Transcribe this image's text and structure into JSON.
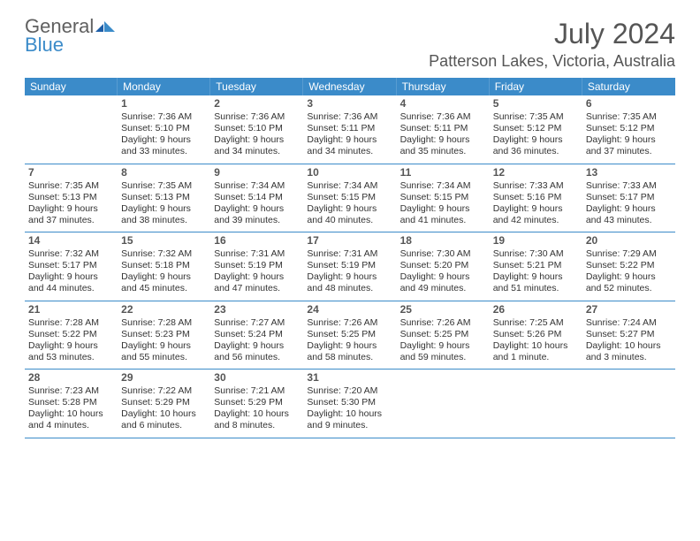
{
  "logo": {
    "text_top": "General",
    "text_bottom": "Blue"
  },
  "month_title": "July 2024",
  "location": "Patterson Lakes, Victoria, Australia",
  "colors": {
    "header_bg": "#3b8bc9",
    "text": "#333333",
    "muted": "#606060"
  },
  "weekdays": [
    "Sunday",
    "Monday",
    "Tuesday",
    "Wednesday",
    "Thursday",
    "Friday",
    "Saturday"
  ],
  "weeks": [
    [
      null,
      {
        "d": "1",
        "sr": "7:36 AM",
        "ss": "5:10 PM",
        "dl1": "Daylight: 9 hours",
        "dl2": "and 33 minutes."
      },
      {
        "d": "2",
        "sr": "7:36 AM",
        "ss": "5:10 PM",
        "dl1": "Daylight: 9 hours",
        "dl2": "and 34 minutes."
      },
      {
        "d": "3",
        "sr": "7:36 AM",
        "ss": "5:11 PM",
        "dl1": "Daylight: 9 hours",
        "dl2": "and 34 minutes."
      },
      {
        "d": "4",
        "sr": "7:36 AM",
        "ss": "5:11 PM",
        "dl1": "Daylight: 9 hours",
        "dl2": "and 35 minutes."
      },
      {
        "d": "5",
        "sr": "7:35 AM",
        "ss": "5:12 PM",
        "dl1": "Daylight: 9 hours",
        "dl2": "and 36 minutes."
      },
      {
        "d": "6",
        "sr": "7:35 AM",
        "ss": "5:12 PM",
        "dl1": "Daylight: 9 hours",
        "dl2": "and 37 minutes."
      }
    ],
    [
      {
        "d": "7",
        "sr": "7:35 AM",
        "ss": "5:13 PM",
        "dl1": "Daylight: 9 hours",
        "dl2": "and 37 minutes."
      },
      {
        "d": "8",
        "sr": "7:35 AM",
        "ss": "5:13 PM",
        "dl1": "Daylight: 9 hours",
        "dl2": "and 38 minutes."
      },
      {
        "d": "9",
        "sr": "7:34 AM",
        "ss": "5:14 PM",
        "dl1": "Daylight: 9 hours",
        "dl2": "and 39 minutes."
      },
      {
        "d": "10",
        "sr": "7:34 AM",
        "ss": "5:15 PM",
        "dl1": "Daylight: 9 hours",
        "dl2": "and 40 minutes."
      },
      {
        "d": "11",
        "sr": "7:34 AM",
        "ss": "5:15 PM",
        "dl1": "Daylight: 9 hours",
        "dl2": "and 41 minutes."
      },
      {
        "d": "12",
        "sr": "7:33 AM",
        "ss": "5:16 PM",
        "dl1": "Daylight: 9 hours",
        "dl2": "and 42 minutes."
      },
      {
        "d": "13",
        "sr": "7:33 AM",
        "ss": "5:17 PM",
        "dl1": "Daylight: 9 hours",
        "dl2": "and 43 minutes."
      }
    ],
    [
      {
        "d": "14",
        "sr": "7:32 AM",
        "ss": "5:17 PM",
        "dl1": "Daylight: 9 hours",
        "dl2": "and 44 minutes."
      },
      {
        "d": "15",
        "sr": "7:32 AM",
        "ss": "5:18 PM",
        "dl1": "Daylight: 9 hours",
        "dl2": "and 45 minutes."
      },
      {
        "d": "16",
        "sr": "7:31 AM",
        "ss": "5:19 PM",
        "dl1": "Daylight: 9 hours",
        "dl2": "and 47 minutes."
      },
      {
        "d": "17",
        "sr": "7:31 AM",
        "ss": "5:19 PM",
        "dl1": "Daylight: 9 hours",
        "dl2": "and 48 minutes."
      },
      {
        "d": "18",
        "sr": "7:30 AM",
        "ss": "5:20 PM",
        "dl1": "Daylight: 9 hours",
        "dl2": "and 49 minutes."
      },
      {
        "d": "19",
        "sr": "7:30 AM",
        "ss": "5:21 PM",
        "dl1": "Daylight: 9 hours",
        "dl2": "and 51 minutes."
      },
      {
        "d": "20",
        "sr": "7:29 AM",
        "ss": "5:22 PM",
        "dl1": "Daylight: 9 hours",
        "dl2": "and 52 minutes."
      }
    ],
    [
      {
        "d": "21",
        "sr": "7:28 AM",
        "ss": "5:22 PM",
        "dl1": "Daylight: 9 hours",
        "dl2": "and 53 minutes."
      },
      {
        "d": "22",
        "sr": "7:28 AM",
        "ss": "5:23 PM",
        "dl1": "Daylight: 9 hours",
        "dl2": "and 55 minutes."
      },
      {
        "d": "23",
        "sr": "7:27 AM",
        "ss": "5:24 PM",
        "dl1": "Daylight: 9 hours",
        "dl2": "and 56 minutes."
      },
      {
        "d": "24",
        "sr": "7:26 AM",
        "ss": "5:25 PM",
        "dl1": "Daylight: 9 hours",
        "dl2": "and 58 minutes."
      },
      {
        "d": "25",
        "sr": "7:26 AM",
        "ss": "5:25 PM",
        "dl1": "Daylight: 9 hours",
        "dl2": "and 59 minutes."
      },
      {
        "d": "26",
        "sr": "7:25 AM",
        "ss": "5:26 PM",
        "dl1": "Daylight: 10 hours",
        "dl2": "and 1 minute."
      },
      {
        "d": "27",
        "sr": "7:24 AM",
        "ss": "5:27 PM",
        "dl1": "Daylight: 10 hours",
        "dl2": "and 3 minutes."
      }
    ],
    [
      {
        "d": "28",
        "sr": "7:23 AM",
        "ss": "5:28 PM",
        "dl1": "Daylight: 10 hours",
        "dl2": "and 4 minutes."
      },
      {
        "d": "29",
        "sr": "7:22 AM",
        "ss": "5:29 PM",
        "dl1": "Daylight: 10 hours",
        "dl2": "and 6 minutes."
      },
      {
        "d": "30",
        "sr": "7:21 AM",
        "ss": "5:29 PM",
        "dl1": "Daylight: 10 hours",
        "dl2": "and 8 minutes."
      },
      {
        "d": "31",
        "sr": "7:20 AM",
        "ss": "5:30 PM",
        "dl1": "Daylight: 10 hours",
        "dl2": "and 9 minutes."
      },
      null,
      null,
      null
    ]
  ],
  "labels": {
    "sunrise": "Sunrise: ",
    "sunset": "Sunset: "
  }
}
